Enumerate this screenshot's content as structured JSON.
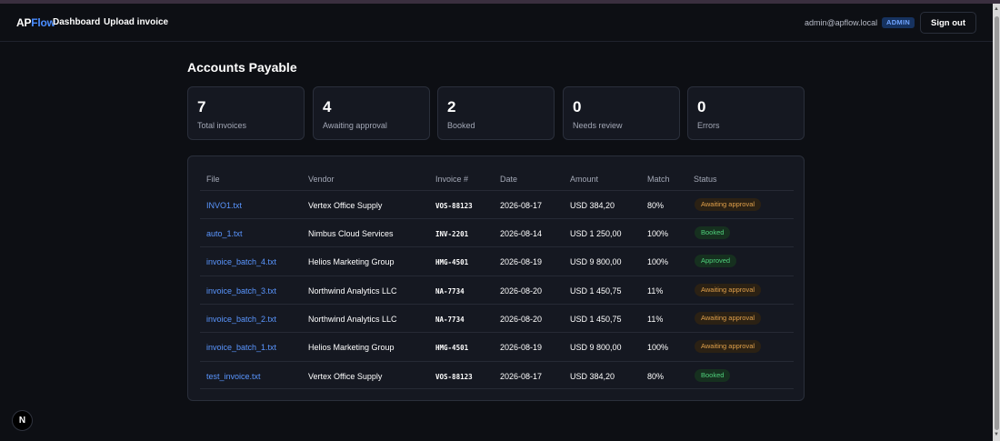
{
  "app": {
    "brand_ap": "AP",
    "brand_flow": "Flow"
  },
  "nav": {
    "dashboard": "Dashboard",
    "upload": "Upload invoice"
  },
  "user": {
    "email": "admin@apflow.local",
    "role": "ADMIN",
    "signout": "Sign out"
  },
  "page": {
    "title": "Accounts Payable"
  },
  "stats": [
    {
      "value": "7",
      "label": "Total invoices"
    },
    {
      "value": "4",
      "label": "Awaiting approval"
    },
    {
      "value": "2",
      "label": "Booked"
    },
    {
      "value": "0",
      "label": "Needs review"
    },
    {
      "value": "0",
      "label": "Errors"
    }
  ],
  "table": {
    "headers": {
      "file": "File",
      "vendor": "Vendor",
      "invoice": "Invoice #",
      "date": "Date",
      "amount": "Amount",
      "match": "Match",
      "status": "Status"
    },
    "rows": [
      {
        "file": "INVO1.txt",
        "vendor": "Vertex Office Supply",
        "invoice": "VOS-88123",
        "date": "2026-08-17",
        "amount": "USD 384,20",
        "match": "80%",
        "status": "Awaiting approval",
        "status_kind": "awaiting"
      },
      {
        "file": "auto_1.txt",
        "vendor": "Nimbus Cloud Services",
        "invoice": "INV-2201",
        "date": "2026-08-14",
        "amount": "USD 1 250,00",
        "match": "100%",
        "status": "Booked",
        "status_kind": "booked"
      },
      {
        "file": "invoice_batch_4.txt",
        "vendor": "Helios Marketing Group",
        "invoice": "HMG-4501",
        "date": "2026-08-19",
        "amount": "USD 9 800,00",
        "match": "100%",
        "status": "Approved",
        "status_kind": "approved"
      },
      {
        "file": "invoice_batch_3.txt",
        "vendor": "Northwind Analytics LLC",
        "invoice": "NA-7734",
        "date": "2026-08-20",
        "amount": "USD 1 450,75",
        "match": "11%",
        "status": "Awaiting approval",
        "status_kind": "awaiting"
      },
      {
        "file": "invoice_batch_2.txt",
        "vendor": "Northwind Analytics LLC",
        "invoice": "NA-7734",
        "date": "2026-08-20",
        "amount": "USD 1 450,75",
        "match": "11%",
        "status": "Awaiting approval",
        "status_kind": "awaiting"
      },
      {
        "file": "invoice_batch_1.txt",
        "vendor": "Helios Marketing Group",
        "invoice": "HMG-4501",
        "date": "2026-08-19",
        "amount": "USD 9 800,00",
        "match": "100%",
        "status": "Awaiting approval",
        "status_kind": "awaiting"
      },
      {
        "file": "test_invoice.txt",
        "vendor": "Vertex Office Supply",
        "invoice": "VOS-88123",
        "date": "2026-08-17",
        "amount": "USD 384,20",
        "match": "80%",
        "status": "Booked",
        "status_kind": "booked"
      }
    ]
  },
  "devtools": {
    "badge": "N",
    "icon": "next-logo-icon"
  },
  "colors": {
    "background": "#0d0f14",
    "card": "#151821",
    "accent": "#4a8dff",
    "awaiting": "#e0a04a",
    "booked": "#4fd07b"
  }
}
